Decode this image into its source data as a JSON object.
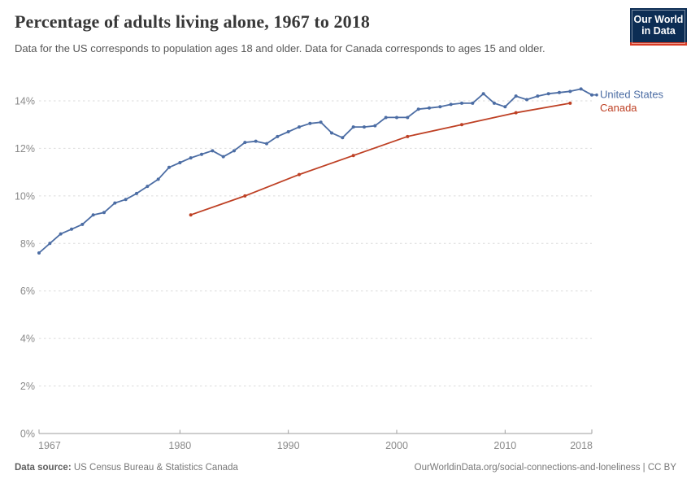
{
  "header": {
    "title": "Percentage of adults living alone, 1967 to 2018",
    "subtitle": "Data for the US corresponds to population ages 18 and older. Data for Canada corresponds to ages 15 and older.",
    "logo": {
      "line1": "Our World",
      "line2": "in Data"
    }
  },
  "colors": {
    "us_line": "#4C6DA4",
    "canada_line": "#BE4024",
    "logo_bg": "#0C2D54",
    "logo_stripe": "#D93A23",
    "grid": "#DBDBDB",
    "axis": "#9E9E9E",
    "tick_label": "#8A8A8A"
  },
  "chart_data": {
    "type": "line",
    "title": "Percentage of adults living alone, 1967 to 2018",
    "xlabel": "",
    "ylabel": "",
    "xlim": [
      1967,
      2018
    ],
    "ylim": [
      0,
      14
    ],
    "grid": true,
    "grid_style": "dashed",
    "legend_position": "right-of-line-end",
    "xticks": [
      {
        "value": 1967,
        "label": "1967"
      },
      {
        "value": 1980,
        "label": "1980"
      },
      {
        "value": 1990,
        "label": "1990"
      },
      {
        "value": 2000,
        "label": "2000"
      },
      {
        "value": 2010,
        "label": "2010"
      },
      {
        "value": 2018,
        "label": "2018"
      }
    ],
    "yticks": [
      {
        "value": 0,
        "label": "0%"
      },
      {
        "value": 2,
        "label": "2%"
      },
      {
        "value": 4,
        "label": "4%"
      },
      {
        "value": 6,
        "label": "6%"
      },
      {
        "value": 8,
        "label": "8%"
      },
      {
        "value": 10,
        "label": "10%"
      },
      {
        "value": 12,
        "label": "12%"
      },
      {
        "value": 14,
        "label": "14%"
      }
    ],
    "series": [
      {
        "name": "United States",
        "color": "#4C6DA4",
        "x": [
          1967,
          1968,
          1969,
          1970,
          1971,
          1972,
          1973,
          1974,
          1975,
          1976,
          1977,
          1978,
          1979,
          1980,
          1981,
          1982,
          1983,
          1984,
          1985,
          1986,
          1987,
          1988,
          1989,
          1990,
          1991,
          1992,
          1993,
          1994,
          1995,
          1996,
          1997,
          1998,
          1999,
          2000,
          2001,
          2002,
          2003,
          2004,
          2005,
          2006,
          2007,
          2008,
          2009,
          2010,
          2011,
          2012,
          2013,
          2014,
          2015,
          2016,
          2017,
          2018
        ],
        "values": [
          7.6,
          8.0,
          8.4,
          8.6,
          8.8,
          9.2,
          9.3,
          9.7,
          9.85,
          10.1,
          10.4,
          10.7,
          11.2,
          11.4,
          11.6,
          11.75,
          11.9,
          11.65,
          11.9,
          12.25,
          12.3,
          12.2,
          12.5,
          12.7,
          12.9,
          13.05,
          13.1,
          12.65,
          12.45,
          12.9,
          12.9,
          12.95,
          13.3,
          13.3,
          13.3,
          13.65,
          13.7,
          13.75,
          13.85,
          13.9,
          13.9,
          14.3,
          13.9,
          13.75,
          14.2,
          14.05,
          14.2,
          14.3,
          14.35,
          14.4,
          14.5,
          14.25
        ]
      },
      {
        "name": "Canada",
        "color": "#BE4024",
        "x": [
          1981,
          1986,
          1991,
          1996,
          2001,
          2006,
          2011,
          2016
        ],
        "values": [
          9.2,
          10.0,
          10.9,
          11.7,
          12.5,
          13.0,
          13.5,
          13.9
        ]
      }
    ]
  },
  "footer": {
    "source_label": "Data source:",
    "source_text": " US Census Bureau & Statistics Canada",
    "link_text": "OurWorldinData.org/social-connections-and-loneliness | CC BY"
  }
}
